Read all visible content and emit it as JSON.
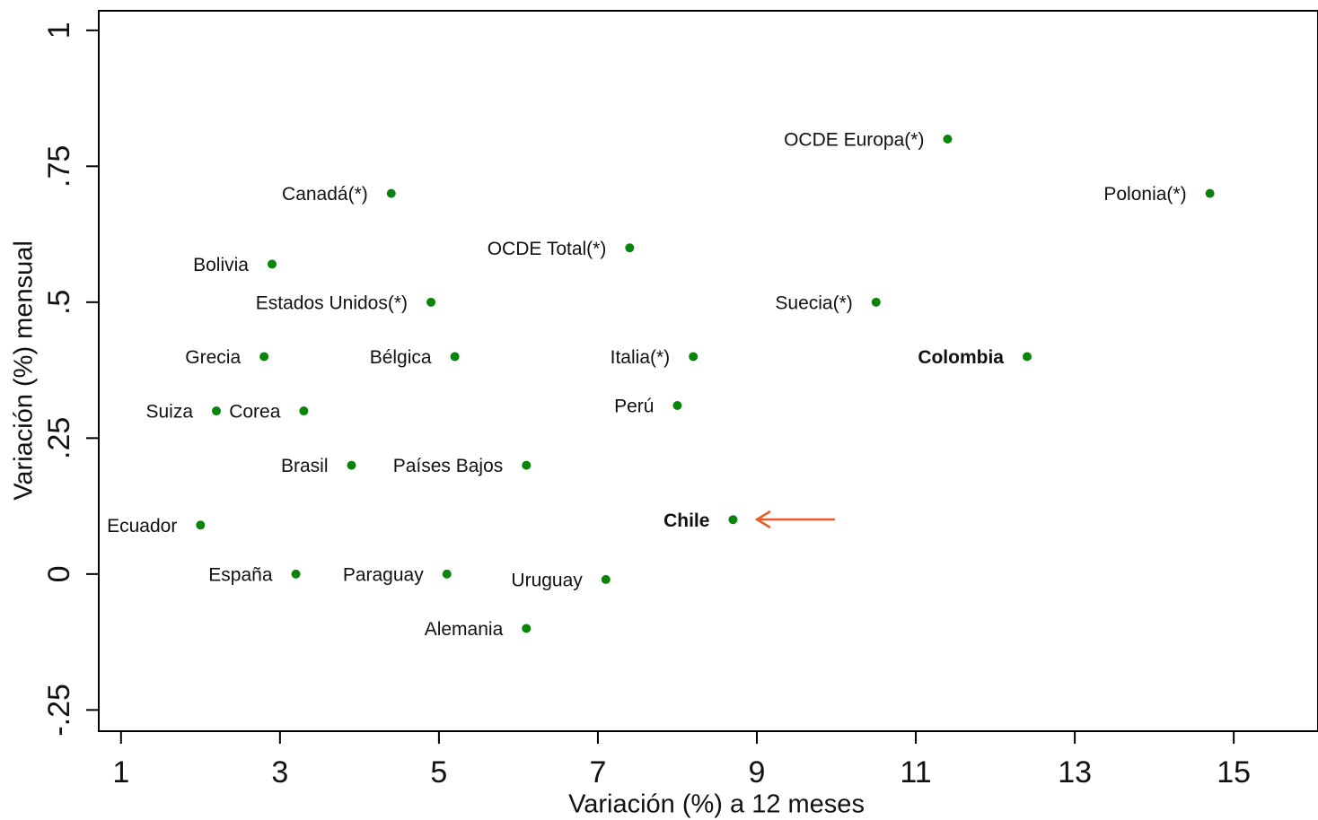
{
  "chart_data": {
    "type": "scatter",
    "xlabel": "Variación (%) a 12 meses",
    "ylabel": "Variación (%) mensual",
    "labels": [
      "OCDE Europa(*)",
      "Polonia(*)",
      "Canadá(*)",
      "OCDE Total(*)",
      "Bolivia",
      "Estados Unidos(*)",
      "Suecia(*)",
      "Grecia",
      "Bélgica",
      "Italia(*)",
      "Colombia",
      "Perú",
      "Suiza",
      "Corea",
      "Brasil",
      "Países Bajos",
      "Ecuador",
      "Chile",
      "España",
      "Paraguay",
      "Uruguay",
      "Alemania"
    ],
    "x": [
      11.4,
      14.7,
      4.4,
      7.4,
      2.9,
      4.9,
      10.5,
      2.8,
      5.2,
      8.2,
      12.4,
      8.0,
      2.2,
      3.3,
      3.9,
      6.1,
      2.0,
      8.7,
      3.2,
      5.1,
      7.1,
      6.1
    ],
    "values": [
      0.8,
      0.7,
      0.7,
      0.6,
      0.57,
      0.5,
      0.5,
      0.4,
      0.4,
      0.4,
      0.4,
      0.31,
      0.3,
      0.3,
      0.2,
      0.2,
      0.09,
      0.1,
      0,
      0,
      -0.01,
      -0.1
    ],
    "bold": [
      10,
      17
    ],
    "color": "#0a850a",
    "xlim": [
      0.72,
      16.06
    ],
    "ylim": [
      -0.289,
      1.036
    ],
    "xticks": [
      1,
      3,
      5,
      7,
      9,
      11,
      13,
      15
    ],
    "yticks": [
      {
        "value": -0.25,
        "label": "-.25"
      },
      0,
      {
        "value": 0.25,
        "label": ".25"
      },
      {
        "value": 0.5,
        "label": ".5"
      },
      {
        "value": 0.75,
        "label": ".75"
      },
      1
    ]
  }
}
